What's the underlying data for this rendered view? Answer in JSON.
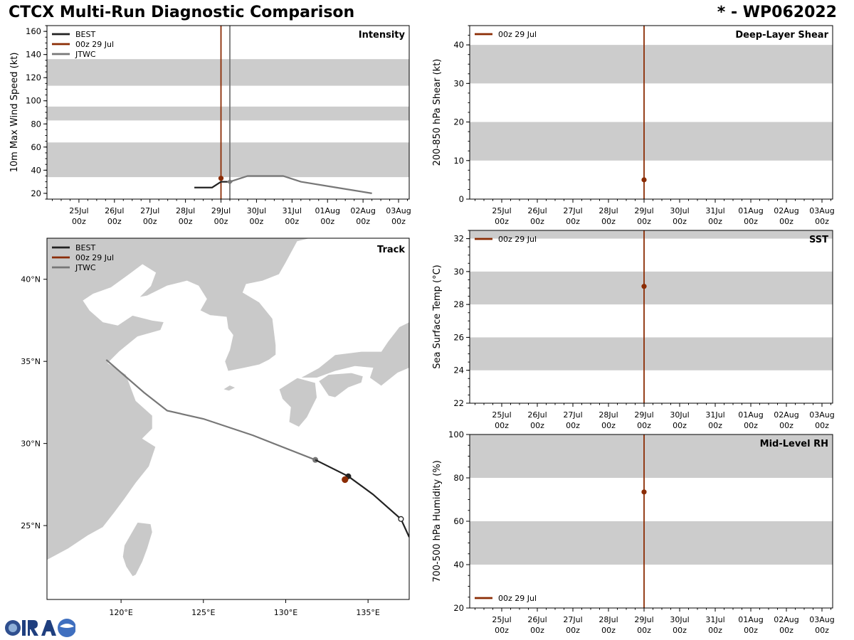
{
  "header": {
    "title": "CTCX Multi-Run Diagnostic Comparison",
    "storm_id": "* - WP062022"
  },
  "colors": {
    "best": "#222222",
    "run": "#8b2c04",
    "jtwc": "#777777",
    "band": "#cccccc",
    "land": "#c9c9c9"
  },
  "time_axis": {
    "ticks": [
      "25Jul",
      "26Jul",
      "27Jul",
      "28Jul",
      "29Jul",
      "30Jul",
      "31Jul",
      "01Aug",
      "02Aug",
      "03Aug"
    ],
    "sublabel": "00z",
    "range_days": [
      -0.9,
      9.3
    ]
  },
  "chart_data": [
    {
      "id": "intensity",
      "type": "line",
      "title": "Intensity",
      "ylabel": "10m Max Wind Speed (kt)",
      "ylim": [
        15,
        165
      ],
      "yticks": [
        20,
        40,
        60,
        80,
        100,
        120,
        140,
        160
      ],
      "bands": [
        [
          34,
          64
        ],
        [
          83,
          95
        ],
        [
          113,
          136
        ]
      ],
      "legend": [
        "BEST",
        "00z 29 Jul",
        "JTWC"
      ],
      "vlines": [
        {
          "series": "run",
          "t": 4.0
        },
        {
          "series": "jtwc",
          "t": 4.25
        }
      ],
      "series": [
        {
          "name": "BEST",
          "key": "best",
          "t": [
            3.25,
            3.75,
            4.0,
            4.25
          ],
          "values": [
            25,
            25,
            30,
            30
          ]
        },
        {
          "name": "JTWC",
          "key": "jtwc",
          "t": [
            4.25,
            4.75,
            5.75,
            6.25,
            7.25,
            8.25
          ],
          "values": [
            30,
            35,
            35,
            30,
            25,
            20
          ],
          "marker_t": 4.25
        },
        {
          "name": "00z 29 Jul",
          "key": "run",
          "t": [
            4.0
          ],
          "values": [
            33
          ]
        }
      ]
    },
    {
      "id": "shear",
      "type": "line",
      "title": "Deep-Layer Shear",
      "ylabel": "200-850 hPa Shear (kt)",
      "ylim": [
        0,
        45
      ],
      "yticks": [
        0,
        10,
        20,
        30,
        40
      ],
      "bands": [
        [
          10,
          20
        ],
        [
          30,
          40
        ]
      ],
      "legend": [
        "00z 29 Jul"
      ],
      "vlines": [
        {
          "series": "run",
          "t": 4.0
        }
      ],
      "series": [
        {
          "name": "00z 29 Jul",
          "key": "run",
          "t": [
            4.0
          ],
          "values": [
            5
          ]
        }
      ]
    },
    {
      "id": "sst",
      "type": "line",
      "title": "SST",
      "ylabel": "Sea Surface Temp (°C)",
      "ylim": [
        22,
        32.5
      ],
      "yticks": [
        22,
        24,
        26,
        28,
        30,
        32
      ],
      "bands": [
        [
          24,
          26
        ],
        [
          28,
          30
        ],
        [
          32,
          32.5
        ]
      ],
      "legend": [
        "00z 29 Jul"
      ],
      "vlines": [
        {
          "series": "run",
          "t": 4.0
        }
      ],
      "series": [
        {
          "name": "00z 29 Jul",
          "key": "run",
          "t": [
            4.0
          ],
          "values": [
            29.1
          ]
        }
      ]
    },
    {
      "id": "rh",
      "type": "line",
      "title": "Mid-Level RH",
      "ylabel": "700-500 hPa Humidity (%)",
      "ylim": [
        20,
        100
      ],
      "yticks": [
        20,
        40,
        60,
        80,
        100
      ],
      "bands": [
        [
          40,
          60
        ],
        [
          80,
          100
        ]
      ],
      "legend": [
        "00z 29 Jul"
      ],
      "vlines": [
        {
          "series": "run",
          "t": 4.0
        }
      ],
      "series": [
        {
          "name": "00z 29 Jul",
          "key": "run",
          "t": [
            4.0
          ],
          "values": [
            73.5
          ]
        }
      ]
    },
    {
      "id": "track",
      "type": "scatter",
      "title": "Track",
      "xlim": [
        115.5,
        137.5
      ],
      "ylim": [
        20.5,
        42.5
      ],
      "xticks": [
        120,
        125,
        130,
        135
      ],
      "xticklabels": [
        "120°E",
        "125°E",
        "130°E",
        "135°E"
      ],
      "yticks": [
        25,
        30,
        35,
        40
      ],
      "yticklabels": [
        "25°N",
        "30°N",
        "35°N",
        "40°N"
      ],
      "legend": [
        "BEST",
        "00z 29 Jul",
        "JTWC"
      ],
      "series": [
        {
          "name": "BEST",
          "key": "best",
          "lon": [
            137.5,
            137.0,
            135.3,
            133.8,
            131.8
          ],
          "lat": [
            24.3,
            25.4,
            26.9,
            28.0,
            29.0
          ],
          "markers": [
            [
              137.0,
              25.4,
              "open"
            ],
            [
              133.8,
              28.0,
              "filled"
            ]
          ]
        },
        {
          "name": "JTWC",
          "key": "jtwc",
          "lon": [
            131.8,
            128.0,
            125.0,
            122.8,
            121.4,
            119.1
          ],
          "lat": [
            29.0,
            30.5,
            31.5,
            32.0,
            33.1,
            35.1
          ],
          "markers": [
            [
              131.8,
              29.0,
              "filled"
            ]
          ]
        },
        {
          "name": "00z 29 Jul",
          "key": "run",
          "lon": [
            133.6
          ],
          "lat": [
            27.8
          ],
          "markers": [
            [
              133.6,
              27.8,
              "filled"
            ]
          ]
        }
      ]
    }
  ]
}
